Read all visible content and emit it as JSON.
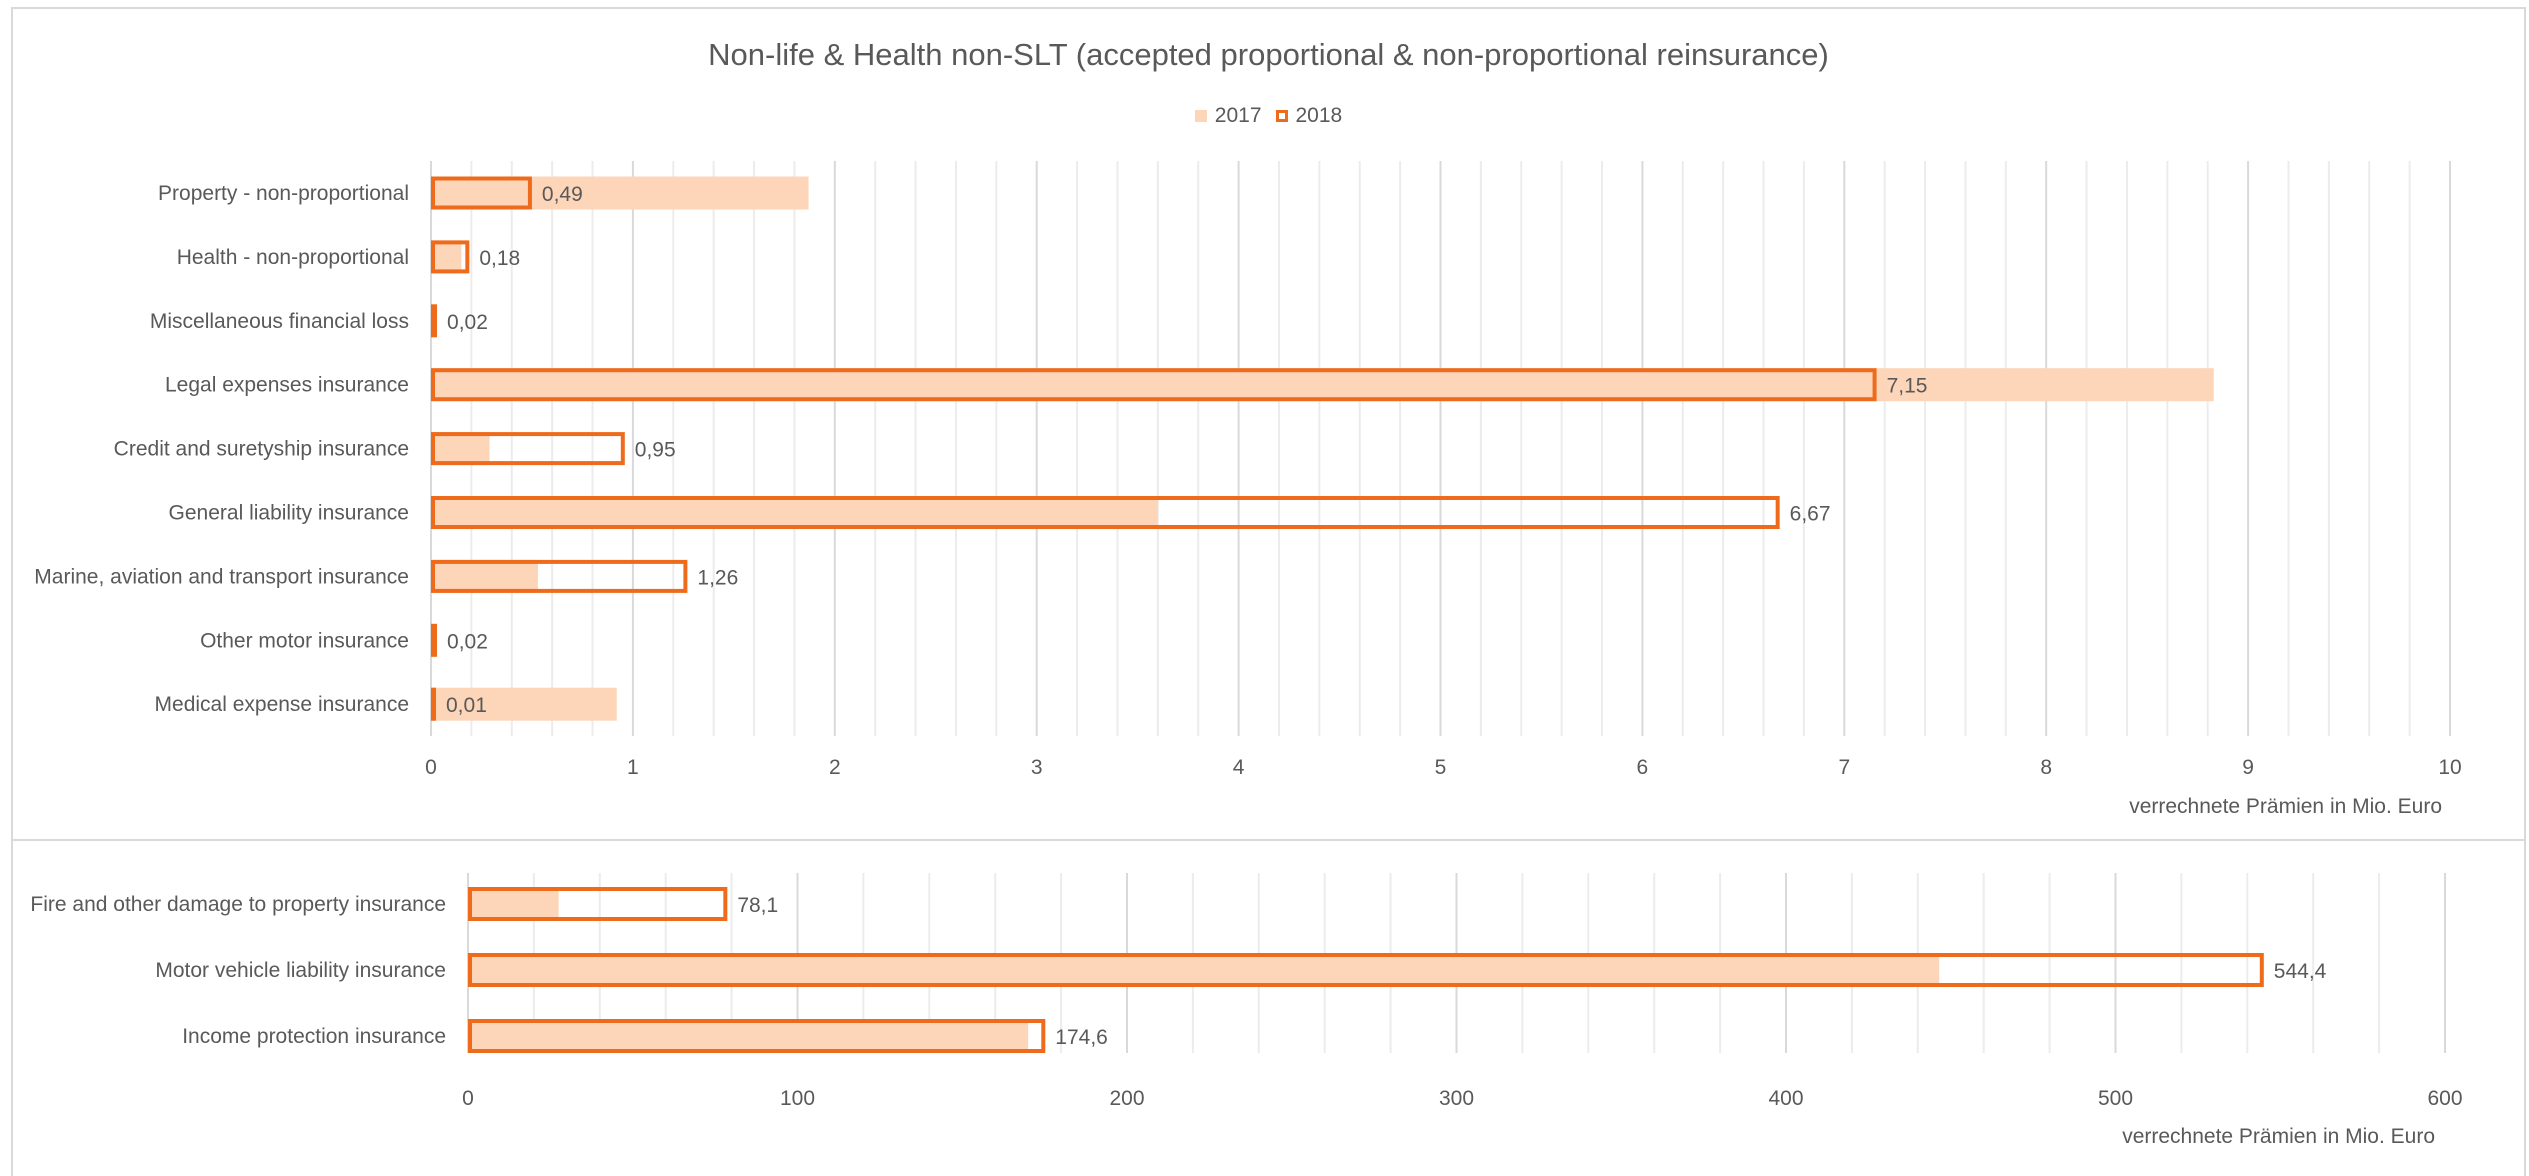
{
  "legend": {
    "label_2017": "2017",
    "label_2018": "2018"
  },
  "colors": {
    "bar_2017_fill": "#fdd5b9",
    "bar_2018_outline": "#ed6b1b",
    "grid": "#d9d9d9",
    "text": "#595959"
  },
  "chart_data": [
    {
      "type": "bar",
      "orientation": "horizontal",
      "title": "Non-life & Health non-SLT (accepted proportional & non-proportional reinsurance)",
      "xlabel": "verrechnete  Prämien in Mio. Euro",
      "xlim": [
        0,
        10
      ],
      "ticks": [
        "0",
        "1",
        "2",
        "3",
        "4",
        "5",
        "6",
        "7",
        "8",
        "9",
        "10"
      ],
      "grid": true,
      "legend_position": "top",
      "categories": [
        "Property - non-proportional",
        "Health - non-proportional",
        "Miscellaneous financial loss",
        "Legal expenses insurance",
        "Credit and suretyship insurance",
        "General liability insurance",
        "Marine, aviation and transport insurance",
        "Other motor insurance",
        "Medical expense insurance"
      ],
      "series": [
        {
          "name": "2017",
          "values": [
            1.87,
            0.15,
            0.0,
            8.83,
            0.29,
            3.6,
            0.53,
            0.0,
            0.92
          ]
        },
        {
          "name": "2018",
          "values": [
            0.49,
            0.18,
            0.02,
            7.15,
            0.95,
            6.67,
            1.26,
            0.02,
            0.01
          ]
        }
      ],
      "data_labels": [
        "0,49",
        "0,18",
        "0,02",
        "7,15",
        "0,95",
        "6,67",
        "1,26",
        "0,02",
        "0,01"
      ]
    },
    {
      "type": "bar",
      "orientation": "horizontal",
      "xlabel": "verrechnete  Prämien in Mio. Euro",
      "xlim": [
        0,
        600
      ],
      "ticks": [
        "0",
        "100",
        "200",
        "300",
        "400",
        "500",
        "600"
      ],
      "grid": true,
      "categories": [
        "Fire and other damage to property insurance",
        "Motor vehicle liability insurance",
        "Income protection insurance"
      ],
      "series": [
        {
          "name": "2017",
          "values": [
            27.5,
            446.5,
            170.0
          ]
        },
        {
          "name": "2018",
          "values": [
            78.1,
            544.4,
            174.6
          ]
        }
      ],
      "data_labels": [
        "78,1",
        "544,4",
        "174,6"
      ]
    }
  ]
}
